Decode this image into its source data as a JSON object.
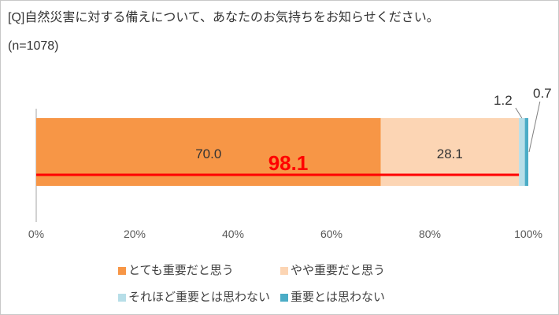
{
  "chart_data": {
    "type": "bar",
    "orientation": "horizontal",
    "stacked": true,
    "title": "[Q]自然災害に対する備えについて、あなたのお気持ちをお知らせください。",
    "subtitle": "(n=1078)",
    "series": [
      {
        "name": "とても重要だと思う",
        "values": [
          70.0
        ],
        "label": "70.0",
        "color": "#F79646"
      },
      {
        "name": "やや重要だと思う",
        "values": [
          28.1
        ],
        "label": "28.1",
        "color": "#FCD5B4"
      },
      {
        "name": "それほど重要とは思わない",
        "values": [
          1.2
        ],
        "label": "1.2",
        "color": "#B7DEE8"
      },
      {
        "name": "重要とは思わない",
        "values": [
          0.7
        ],
        "label": "0.7",
        "color": "#4BACC6"
      }
    ],
    "xlim": [
      0,
      100
    ],
    "xtick_values": [
      0,
      20,
      40,
      60,
      80,
      100
    ],
    "xticks": [
      "0%",
      "20%",
      "40%",
      "60%",
      "80%",
      "100%"
    ],
    "grid": false,
    "legend_position": "bottom",
    "annotation": {
      "label": "98.1",
      "value": 98.1,
      "color": "#FF0000"
    }
  }
}
